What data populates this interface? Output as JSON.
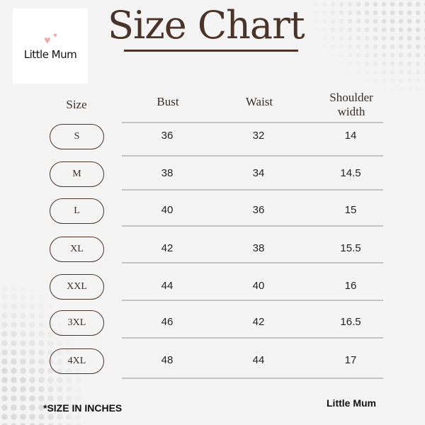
{
  "logo": {
    "text": "Little Mum",
    "heart_color": "#f4a7ad"
  },
  "title": "Size Chart",
  "accent_color": "#4a3328",
  "table": {
    "headers": [
      "Size",
      "Bust",
      "Waist",
      "Shoulder width"
    ],
    "rows": [
      {
        "size": "S",
        "bust": "36",
        "waist": "32",
        "shoulder": "14"
      },
      {
        "size": "M",
        "bust": "38",
        "waist": "34",
        "shoulder": "14.5"
      },
      {
        "size": "L",
        "bust": "40",
        "waist": "36",
        "shoulder": "15"
      },
      {
        "size": "XL",
        "bust": "42",
        "waist": "38",
        "shoulder": "15.5"
      },
      {
        "size": "XXL",
        "bust": "44",
        "waist": "40",
        "shoulder": "16"
      },
      {
        "size": "3XL",
        "bust": "46",
        "waist": "42",
        "shoulder": "16.5"
      },
      {
        "size": "4XL",
        "bust": "48",
        "waist": "44",
        "shoulder": "17"
      }
    ]
  },
  "footer": {
    "note": "*SIZE IN INCHES",
    "brand": "Little Mum"
  }
}
